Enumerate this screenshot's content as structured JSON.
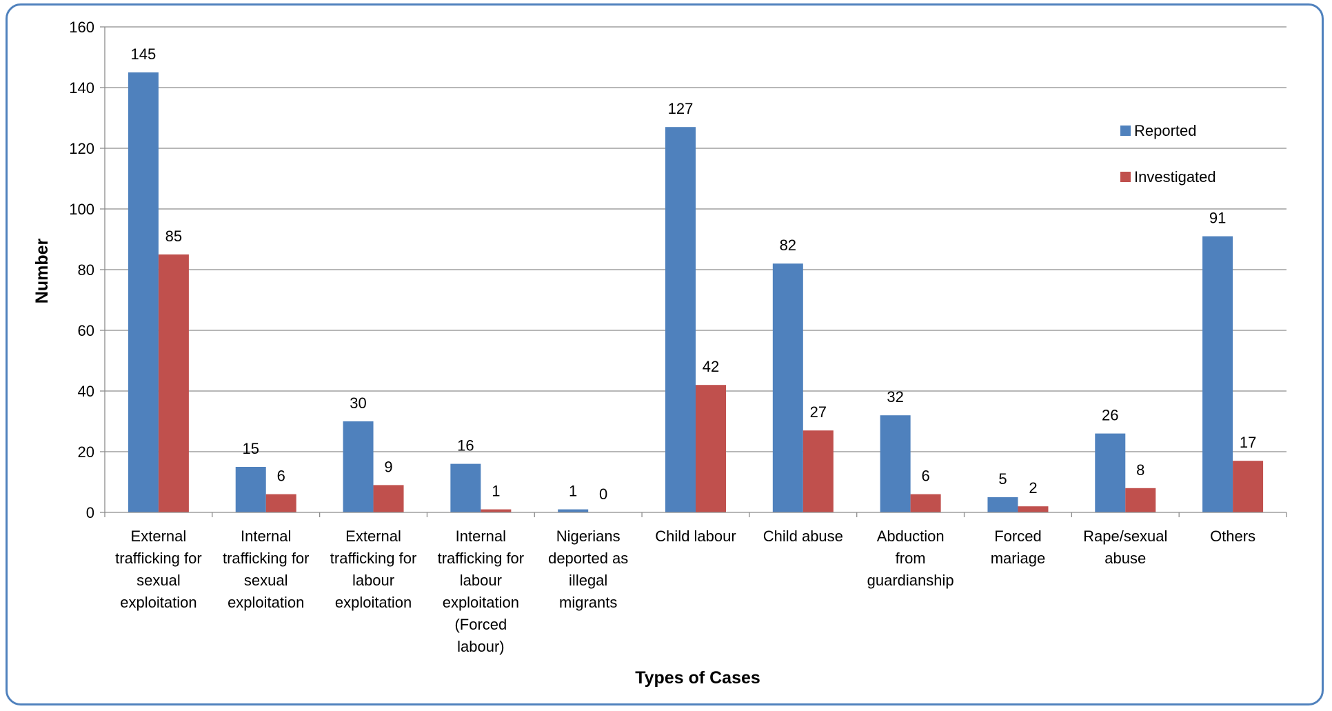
{
  "chart_data": {
    "type": "bar",
    "title": "",
    "xlabel": "Types of Cases",
    "ylabel": "Number",
    "ylim": [
      0,
      160
    ],
    "yticks": [
      0,
      20,
      40,
      60,
      80,
      100,
      120,
      140,
      160
    ],
    "grid": true,
    "legend_position": "top-right",
    "categories": [
      "External trafficking for sexual exploitation",
      "Internal trafficking for sexual exploitation",
      "External trafficking for labour exploitation",
      "Internal trafficking for labour exploitation (Forced labour)",
      "Nigerians deported as illegal migrants",
      "Child labour",
      "Child abuse",
      "Abduction from guardianship",
      "Forced mariage",
      "Rape/sexual abuse",
      "Others"
    ],
    "category_lines": [
      [
        "External",
        "trafficking for",
        "sexual",
        "exploitation"
      ],
      [
        "Internal",
        "trafficking for",
        "sexual",
        "exploitation"
      ],
      [
        "External",
        "trafficking for",
        "labour",
        "exploitation"
      ],
      [
        "Internal",
        "trafficking for",
        "labour",
        "exploitation",
        "(Forced",
        "labour)"
      ],
      [
        "Nigerians",
        "deported as",
        "illegal",
        "migrants"
      ],
      [
        "Child labour"
      ],
      [
        "Child abuse"
      ],
      [
        "Abduction",
        "from",
        "guardianship"
      ],
      [
        "Forced",
        "mariage"
      ],
      [
        "Rape/sexual",
        "abuse"
      ],
      [
        "Others"
      ]
    ],
    "series": [
      {
        "name": "Reported",
        "color": "#4f81bd",
        "values": [
          145,
          15,
          30,
          16,
          1,
          127,
          82,
          32,
          5,
          26,
          91
        ]
      },
      {
        "name": "Investigated",
        "color": "#c0504d",
        "values": [
          85,
          6,
          9,
          1,
          0,
          42,
          27,
          6,
          2,
          8,
          17
        ]
      }
    ]
  }
}
